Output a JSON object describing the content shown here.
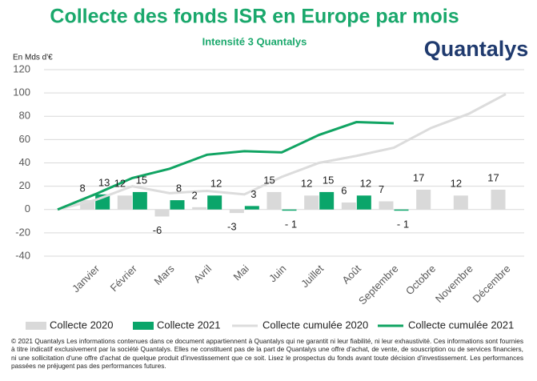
{
  "chart_data": {
    "type": "bar",
    "title": "Collecte des fonds ISR en Europe par mois",
    "subtitle": "Intensité 3 Quantalys",
    "logo": "Quantalys",
    "y_axis_label": "En Mds d'€",
    "categories": [
      null,
      "Janvier",
      "Février",
      "Mars",
      "Avril",
      "Mai",
      "Juin",
      "Juillet",
      "Août",
      "Septembre",
      "Octobre",
      "Novembre",
      "Décembre"
    ],
    "ylim": [
      -40,
      120
    ],
    "yticks": [
      -40,
      -20,
      0,
      20,
      40,
      60,
      80,
      100,
      120
    ],
    "grid": true,
    "legend": "bottom",
    "series": [
      {
        "name": "Collecte 2020",
        "type": "bar",
        "color": "#d9d9d9",
        "values": [
          null,
          8,
          12,
          -6,
          2,
          -3,
          15,
          12,
          6,
          7,
          17,
          12,
          17
        ]
      },
      {
        "name": "Collecte 2021",
        "type": "bar",
        "color": "#0aa56a",
        "values": [
          null,
          13,
          15,
          8,
          12,
          3,
          -1,
          15,
          12,
          -1,
          null,
          null,
          null
        ],
        "value_labels": [
          null,
          "13",
          "15",
          "8",
          "12",
          "3",
          "- 1",
          "15",
          "12",
          "- 1",
          null,
          null,
          null
        ]
      },
      {
        "name": "Collecte cumulée 2020",
        "type": "line",
        "color": "#dcdcdc",
        "values": [
          0,
          8,
          20,
          14,
          16,
          13,
          28,
          40,
          46,
          53,
          70,
          82,
          99
        ]
      },
      {
        "name": "Collecte cumulée 2021",
        "type": "line",
        "color": "#11a463",
        "values": [
          0,
          13,
          27,
          35,
          47,
          50,
          49,
          64,
          75,
          74,
          null,
          null,
          null
        ]
      }
    ],
    "footnote": "© 2021 Quantalys Les informations contenues dans ce document appartiennent à Quantalys qui ne garantit ni leur fiabilité, ni leur exhaustivité. Ces informations sont fournies à titre indicatif exclusivement par la société Quantalys. Elles ne constituent pas de la part de Quantalys une offre d'achat, de vente, de souscription ou de services financiers, ni une sollicitation d'une offre d'achat de quelque produit d'investissement que ce soit. Lisez le prospectus du fonds avant toute décision d'investissement. Les performances passées ne préjugent pas des performances futures."
  }
}
